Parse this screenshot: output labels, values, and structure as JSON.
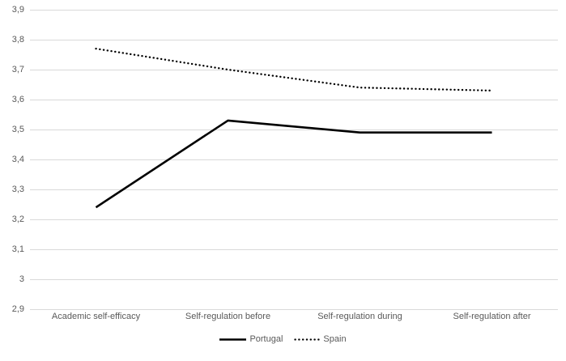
{
  "chart_data": {
    "type": "line",
    "title": "",
    "xlabel": "",
    "ylabel": "",
    "categories": [
      "Academic self-efficacy",
      "Self-regulation before",
      "Self-regulation during",
      "Self-regulation after"
    ],
    "series": [
      {
        "name": "Portugal",
        "style": "solid",
        "color": "#000000",
        "values": [
          3.24,
          3.53,
          3.49,
          3.49
        ]
      },
      {
        "name": "Spain",
        "style": "dotted",
        "color": "#000000",
        "values": [
          3.77,
          3.7,
          3.64,
          3.63
        ]
      }
    ],
    "ylim": [
      2.9,
      3.9
    ],
    "yticks": [
      {
        "label": "2,9",
        "value": 2.9
      },
      {
        "label": "3",
        "value": 3.0
      },
      {
        "label": "3,1",
        "value": 3.1
      },
      {
        "label": "3,2",
        "value": 3.2
      },
      {
        "label": "3,3",
        "value": 3.3
      },
      {
        "label": "3,4",
        "value": 3.4
      },
      {
        "label": "3,5",
        "value": 3.5
      },
      {
        "label": "3,6",
        "value": 3.6
      },
      {
        "label": "3,7",
        "value": 3.7
      },
      {
        "label": "3,8",
        "value": 3.8
      },
      {
        "label": "3,9",
        "value": 3.9
      }
    ],
    "decimal_separator": ",",
    "grid": "horizontal",
    "legend_position": "bottom",
    "colors": {
      "background": "#ffffff",
      "gridline": "#d9d9d9",
      "axis_text": "#595959",
      "line": "#000000"
    }
  }
}
